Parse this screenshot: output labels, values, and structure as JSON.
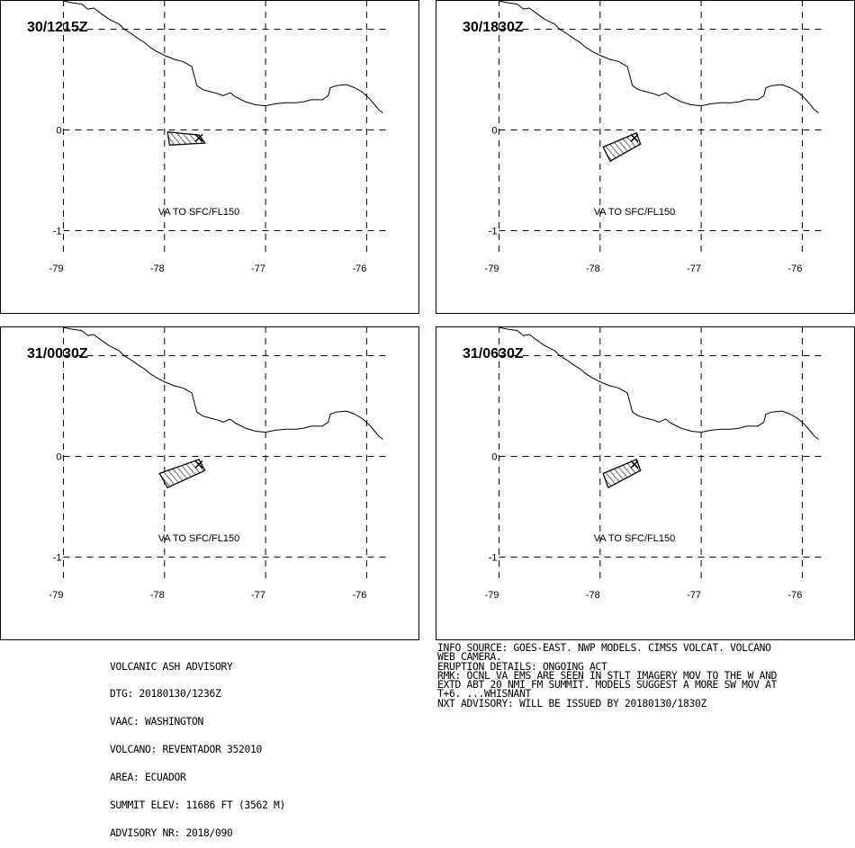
{
  "map": {
    "x_ticks": [
      "-79",
      "-78",
      "-77",
      "-76"
    ],
    "y_ticks": [
      "0",
      "-1"
    ],
    "coastline_lon_lat": [
      [
        -79.0,
        1.28
      ],
      [
        -78.9,
        1.26
      ],
      [
        -78.82,
        1.25
      ],
      [
        -78.76,
        1.2
      ],
      [
        -78.7,
        1.21
      ],
      [
        -78.62,
        1.15
      ],
      [
        -78.55,
        1.1
      ],
      [
        -78.45,
        1.05
      ],
      [
        -78.4,
        1.0
      ],
      [
        -78.32,
        0.95
      ],
      [
        -78.25,
        0.9
      ],
      [
        -78.2,
        0.87
      ],
      [
        -78.14,
        0.82
      ],
      [
        -78.08,
        0.78
      ],
      [
        -78.0,
        0.74
      ],
      [
        -77.9,
        0.7
      ],
      [
        -77.82,
        0.68
      ],
      [
        -77.73,
        0.63
      ],
      [
        -77.68,
        0.44
      ],
      [
        -77.62,
        0.4
      ],
      [
        -77.55,
        0.38
      ],
      [
        -77.47,
        0.36
      ],
      [
        -77.42,
        0.34
      ],
      [
        -77.35,
        0.37
      ],
      [
        -77.3,
        0.33
      ],
      [
        -77.2,
        0.28
      ],
      [
        -77.1,
        0.25
      ],
      [
        -77.0,
        0.24
      ],
      [
        -76.9,
        0.26
      ],
      [
        -76.8,
        0.27
      ],
      [
        -76.7,
        0.27
      ],
      [
        -76.62,
        0.28
      ],
      [
        -76.55,
        0.3
      ],
      [
        -76.48,
        0.3
      ],
      [
        -76.44,
        0.3
      ],
      [
        -76.38,
        0.34
      ],
      [
        -76.36,
        0.42
      ],
      [
        -76.3,
        0.44
      ],
      [
        -76.2,
        0.45
      ],
      [
        -76.12,
        0.42
      ],
      [
        -76.05,
        0.38
      ],
      [
        -75.98,
        0.32
      ],
      [
        -75.92,
        0.25
      ],
      [
        -75.88,
        0.2
      ],
      [
        -75.84,
        0.17
      ]
    ],
    "volcano_lon_lat": [
      -77.66,
      -0.08
    ]
  },
  "panels": [
    {
      "label": "30/1215Z",
      "va_label": "VA TO SFC/FL150",
      "ash_polygon_lon_lat": [
        [
          -77.97,
          -0.02
        ],
        [
          -77.95,
          -0.15
        ],
        [
          -77.6,
          -0.13
        ],
        [
          -77.66,
          -0.05
        ]
      ]
    },
    {
      "label": "30/1830Z",
      "va_label": "VA TO SFC/FL150",
      "ash_polygon_lon_lat": [
        [
          -77.97,
          -0.17
        ],
        [
          -77.9,
          -0.31
        ],
        [
          -77.6,
          -0.14
        ],
        [
          -77.64,
          -0.03
        ]
      ]
    },
    {
      "label": "31/0030Z",
      "va_label": "VA TO SFC/FL150",
      "ash_polygon_lon_lat": [
        [
          -78.05,
          -0.17
        ],
        [
          -77.97,
          -0.31
        ],
        [
          -77.6,
          -0.14
        ],
        [
          -77.66,
          -0.03
        ]
      ]
    },
    {
      "label": "31/0630Z",
      "va_label": "VA TO SFC/FL150",
      "ash_polygon_lon_lat": [
        [
          -77.97,
          -0.17
        ],
        [
          -77.92,
          -0.31
        ],
        [
          -77.6,
          -0.14
        ],
        [
          -77.64,
          -0.03
        ]
      ]
    }
  ],
  "advisory_left": [
    "VOLCANIC ASH ADVISORY",
    "DTG: 20180130/1236Z",
    "VAAC: WASHINGTON",
    "VOLCANO: REVENTADOR 352010",
    "AREA: ECUADOR",
    "SUMMIT ELEV: 11686 FT (3562 M)",
    "ADVISORY NR: 2018/090"
  ],
  "advisory_right": [
    "INFO SOURCE: GOES-EAST. NWP MODELS. CIMSS VOLCAT. VOLCANO",
    "WEB CAMERA.",
    "ERUPTION DETAILS: ONGOING ACT",
    "RMK: OCNL VA EMS ARE SEEN IN STLT IMAGERY MOV TO THE W AND",
    "EXTD ABT 20 NMI FM SUMMIT. MODELS SUGGEST A MORE SW MOV AT",
    "T+6. ...WHISNANT",
    "NXT ADVISORY: WILL BE ISSUED BY 20180130/1830Z"
  ]
}
